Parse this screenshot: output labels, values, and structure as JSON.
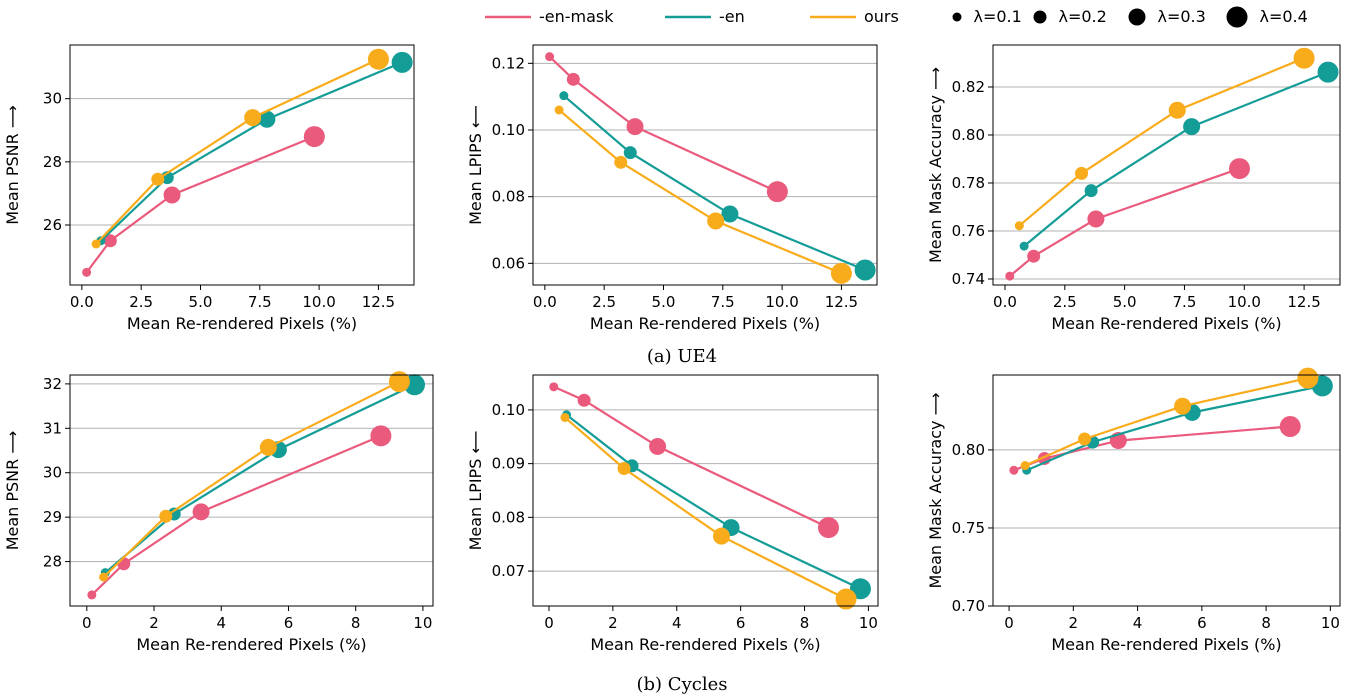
{
  "legend": {
    "series": [
      {
        "name": "-en-mask",
        "color": "#ea5a7d"
      },
      {
        "name": "-en",
        "color": "#149c96"
      },
      {
        "name": "ours",
        "color": "#f9ac1b"
      }
    ],
    "sizes": [
      {
        "label": "λ=0.1",
        "level": 0.1
      },
      {
        "label": "λ=0.2",
        "level": 0.2
      },
      {
        "label": "λ=0.3",
        "level": 0.3
      },
      {
        "label": "λ=0.4",
        "level": 0.4
      }
    ]
  },
  "captions": {
    "top": "(a) UE4",
    "bottom": "(b) Cycles"
  },
  "chart_data": [
    {
      "type": "line",
      "group": "UE4",
      "xlabel": "Mean Re-rendered Pixels (%)",
      "ylabel": "Mean PSNR  ⟶",
      "xlim": [
        -0.5,
        14.0
      ],
      "ylim": [
        24.1,
        31.7
      ],
      "xticks": [
        0.0,
        2.5,
        5.0,
        7.5,
        10.0,
        12.5
      ],
      "xticklabels": [
        "0.0",
        "2.5",
        "5.0",
        "7.5",
        "10.0",
        "12.5"
      ],
      "yticks": [
        26,
        28,
        30
      ],
      "yticklabels": [
        "26",
        "28",
        "30"
      ],
      "grid": "horizontal",
      "series": [
        {
          "name": "-en-mask",
          "x": [
            0.2,
            1.2,
            3.8,
            9.8
          ],
          "y": [
            24.5,
            25.5,
            26.95,
            28.8
          ]
        },
        {
          "name": "-en",
          "x": [
            0.8,
            3.6,
            7.8,
            13.5
          ],
          "y": [
            25.5,
            27.5,
            29.35,
            31.15
          ]
        },
        {
          "name": "ours",
          "x": [
            0.6,
            3.2,
            7.2,
            12.5
          ],
          "y": [
            25.4,
            27.45,
            29.4,
            31.25
          ]
        }
      ]
    },
    {
      "type": "line",
      "group": "UE4",
      "xlabel": "Mean Re-rendered Pixels (%)",
      "ylabel": "Mean LPIPS ⟵",
      "xlim": [
        -0.5,
        14.0
      ],
      "ylim": [
        0.0535,
        0.1255
      ],
      "xticks": [
        0.0,
        2.5,
        5.0,
        7.5,
        10.0,
        12.5
      ],
      "xticklabels": [
        "0.0",
        "2.5",
        "5.0",
        "7.5",
        "10.0",
        "12.5"
      ],
      "yticks": [
        0.06,
        0.08,
        0.1,
        0.12
      ],
      "yticklabels": [
        "0.06",
        "0.08",
        "0.10",
        "0.12"
      ],
      "grid": "horizontal",
      "series": [
        {
          "name": "-en-mask",
          "x": [
            0.2,
            1.2,
            3.8,
            9.8
          ],
          "y": [
            0.122,
            0.1152,
            0.101,
            0.0815
          ]
        },
        {
          "name": "-en",
          "x": [
            0.8,
            3.6,
            7.8,
            13.5
          ],
          "y": [
            0.1103,
            0.0932,
            0.0748,
            0.058
          ]
        },
        {
          "name": "ours",
          "x": [
            0.6,
            3.2,
            7.2,
            12.5
          ],
          "y": [
            0.106,
            0.0903,
            0.0727,
            0.057
          ]
        }
      ]
    },
    {
      "type": "line",
      "group": "UE4",
      "xlabel": "Mean Re-rendered Pixels (%)",
      "ylabel": "Mean Mask Accuracy  ⟶",
      "xlim": [
        -0.5,
        14.0
      ],
      "ylim": [
        0.7375,
        0.8375
      ],
      "xticks": [
        0.0,
        2.5,
        5.0,
        7.5,
        10.0,
        12.5
      ],
      "xticklabels": [
        "0.0",
        "2.5",
        "5.0",
        "7.5",
        "10.0",
        "12.5"
      ],
      "yticks": [
        0.74,
        0.76,
        0.78,
        0.8,
        0.82
      ],
      "yticklabels": [
        "0.74",
        "0.76",
        "0.78",
        "0.80",
        "0.82"
      ],
      "grid": "horizontal",
      "series": [
        {
          "name": "-en-mask",
          "x": [
            0.2,
            1.2,
            3.8,
            9.8
          ],
          "y": [
            0.7412,
            0.7495,
            0.765,
            0.786
          ]
        },
        {
          "name": "-en",
          "x": [
            0.8,
            3.6,
            7.8,
            13.5
          ],
          "y": [
            0.7537,
            0.7768,
            0.8035,
            0.8262
          ]
        },
        {
          "name": "ours",
          "x": [
            0.6,
            3.2,
            7.2,
            12.5
          ],
          "y": [
            0.7622,
            0.784,
            0.8103,
            0.832
          ]
        }
      ]
    },
    {
      "type": "line",
      "group": "Cycles",
      "xlabel": "Mean Re-rendered Pixels (%)",
      "ylabel": "Mean PSNR  ⟶",
      "xlim": [
        -0.5,
        10.3
      ],
      "ylim": [
        27.0,
        32.2
      ],
      "xticks": [
        0,
        2,
        4,
        6,
        8,
        10
      ],
      "xticklabels": [
        "0",
        "2",
        "4",
        "6",
        "8",
        "10"
      ],
      "yticks": [
        28,
        29,
        30,
        31,
        32
      ],
      "yticklabels": [
        "28",
        "29",
        "30",
        "31",
        "32"
      ],
      "grid": "horizontal",
      "series": [
        {
          "name": "-en-mask",
          "x": [
            0.15,
            1.1,
            3.4,
            8.75
          ],
          "y": [
            27.25,
            27.95,
            29.12,
            30.83
          ]
        },
        {
          "name": "-en",
          "x": [
            0.55,
            2.6,
            5.7,
            9.75
          ],
          "y": [
            27.75,
            29.07,
            30.52,
            31.98
          ]
        },
        {
          "name": "ours",
          "x": [
            0.5,
            2.35,
            5.4,
            9.3
          ],
          "y": [
            27.65,
            29.02,
            30.57,
            32.05
          ]
        }
      ]
    },
    {
      "type": "line",
      "group": "Cycles",
      "xlabel": "Mean Re-rendered Pixels (%)",
      "ylabel": "Mean LPIPS ⟵",
      "xlim": [
        -0.5,
        10.3
      ],
      "ylim": [
        0.0635,
        0.1065
      ],
      "xticks": [
        0,
        2,
        4,
        6,
        8,
        10
      ],
      "xticklabels": [
        "0",
        "2",
        "4",
        "6",
        "8",
        "10"
      ],
      "yticks": [
        0.07,
        0.08,
        0.09,
        0.1
      ],
      "yticklabels": [
        "0.07",
        "0.08",
        "0.09",
        "0.10"
      ],
      "grid": "horizontal",
      "series": [
        {
          "name": "-en-mask",
          "x": [
            0.15,
            1.1,
            3.4,
            8.75
          ],
          "y": [
            0.1043,
            0.1018,
            0.0932,
            0.0781
          ]
        },
        {
          "name": "-en",
          "x": [
            0.55,
            2.6,
            5.7,
            9.75
          ],
          "y": [
            0.0991,
            0.0896,
            0.0781,
            0.0667
          ]
        },
        {
          "name": "ours",
          "x": [
            0.5,
            2.35,
            5.4,
            9.3
          ],
          "y": [
            0.0986,
            0.0891,
            0.0765,
            0.0648
          ]
        }
      ]
    },
    {
      "type": "line",
      "group": "Cycles",
      "xlabel": "Mean Re-rendered Pixels (%)",
      "ylabel": "Mean Mask Accuracy  ⟶",
      "xlim": [
        -0.5,
        10.3
      ],
      "ylim": [
        0.7,
        0.848
      ],
      "xticks": [
        0,
        2,
        4,
        6,
        8,
        10
      ],
      "xticklabels": [
        "0",
        "2",
        "4",
        "6",
        "8",
        "10"
      ],
      "yticks": [
        0.7,
        0.75,
        0.8
      ],
      "yticklabels": [
        "0.70",
        "0.75",
        "0.80"
      ],
      "grid": "horizontal",
      "series": [
        {
          "name": "-en-mask",
          "x": [
            0.15,
            1.1,
            3.4,
            8.75
          ],
          "y": [
            0.787,
            0.7945,
            0.806,
            0.815
          ]
        },
        {
          "name": "-en",
          "x": [
            0.55,
            2.6,
            5.7,
            9.75
          ],
          "y": [
            0.787,
            0.805,
            0.824,
            0.841
          ]
        },
        {
          "name": "ours",
          "x": [
            0.5,
            2.35,
            5.4,
            9.3
          ],
          "y": [
            0.79,
            0.807,
            0.828,
            0.846
          ]
        }
      ]
    }
  ]
}
